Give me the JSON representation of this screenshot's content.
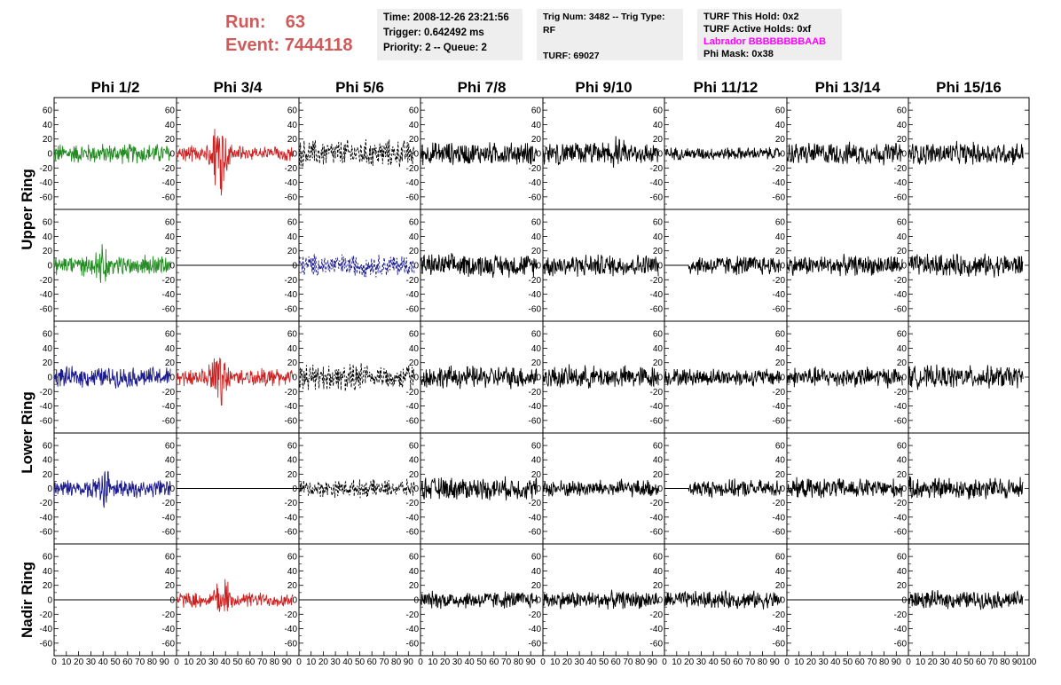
{
  "header": {
    "run_label": "Run:",
    "run_value": "63",
    "event_label": "Event:",
    "event_value": "7444118"
  },
  "info": {
    "time": "Time: 2008-12-26 23:21:56",
    "trigger": "Trigger: 0.642492 ms",
    "priority": "Priority: 2 -- Queue: 2",
    "trig_num": "Trig Num: 3482 -- Trig Type: RF",
    "turf": "TURF: 69027",
    "turf_this_hold": "TURF This Hold: 0x2",
    "turf_active_holds": "TURF Active Holds: 0xf",
    "labrador": "Labrador BBBBBBBBAAB",
    "phi_mask": "Phi Mask: 0x38"
  },
  "colors": {
    "header_red": "#d05a5a",
    "box_bg": "#eeeeee",
    "labrador": "#ff00ff",
    "green": "#228b22",
    "red": "#cc2222",
    "blue": "#1a1a8c",
    "black": "#000000"
  },
  "chart_data": {
    "type": "line",
    "columns": [
      "Phi 1/2",
      "Phi 3/4",
      "Phi 5/6",
      "Phi 7/8",
      "Phi 9/10",
      "Phi 11/12",
      "Phi 13/14",
      "Phi 15/16"
    ],
    "rings": [
      "Upper Ring",
      "Lower Ring",
      "Nadir Ring"
    ],
    "row_ring": [
      0,
      0,
      1,
      1,
      2
    ],
    "ylim": [
      -70,
      70
    ],
    "yticks": [
      -60,
      -40,
      -20,
      0,
      20,
      40,
      60
    ],
    "xlim": [
      0,
      100
    ],
    "xticks": [
      0,
      10,
      20,
      30,
      40,
      50,
      60,
      70,
      80,
      90,
      100
    ],
    "xtick_labels": [
      "0",
      "10",
      "20",
      "30",
      "40",
      "50",
      "60",
      "70",
      "80",
      "90",
      "100"
    ],
    "panels": [
      [
        {
          "style": "green",
          "amp": 16,
          "burst": 0
        },
        {
          "style": "red",
          "amp": 12,
          "burst": 55,
          "bc": 35
        },
        {
          "style": "black-dash",
          "amp": 22,
          "burst": 0
        },
        {
          "style": "black",
          "amp": 18,
          "burst": 0
        },
        {
          "style": "black",
          "amp": 18,
          "burst": 12,
          "bc": 60
        },
        {
          "style": "black",
          "amp": 10,
          "burst": 0
        },
        {
          "style": "black",
          "amp": 18,
          "burst": 0
        },
        {
          "style": "black",
          "amp": 18,
          "burst": 0
        }
      ],
      [
        {
          "style": "green",
          "amp": 16,
          "burst": 20,
          "bc": 40
        },
        {
          "style": "flat"
        },
        {
          "style": "blue-dash",
          "amp": 18,
          "burst": 0
        },
        {
          "style": "black",
          "amp": 18,
          "burst": 0
        },
        {
          "style": "black",
          "amp": 18,
          "burst": 0
        },
        {
          "style": "black",
          "amp": 0,
          "burst": 0,
          "seg": [
            20,
            100
          ],
          "amp2": 16
        },
        {
          "style": "black",
          "amp": 16,
          "burst": 0
        },
        {
          "style": "black",
          "amp": 18,
          "burst": 0
        }
      ],
      [
        {
          "style": "blue",
          "amp": 16,
          "burst": 0
        },
        {
          "style": "red",
          "amp": 14,
          "burst": 40,
          "bc": 35
        },
        {
          "style": "black-dash",
          "amp": 20,
          "burst": 18,
          "bc": 45
        },
        {
          "style": "black",
          "amp": 18,
          "burst": 0
        },
        {
          "style": "black",
          "amp": 18,
          "burst": 0
        },
        {
          "style": "black",
          "amp": 14,
          "burst": 0
        },
        {
          "style": "black",
          "amp": 16,
          "burst": 0
        },
        {
          "style": "black",
          "amp": 18,
          "burst": 0
        }
      ],
      [
        {
          "style": "blue",
          "amp": 14,
          "burst": 22,
          "bc": 40
        },
        {
          "style": "flat"
        },
        {
          "style": "black-dash",
          "amp": 14,
          "burst": 0
        },
        {
          "style": "black",
          "amp": 18,
          "burst": 0
        },
        {
          "style": "black",
          "amp": 14,
          "burst": 0
        },
        {
          "style": "black",
          "amp": 0,
          "burst": 0,
          "seg": [
            20,
            100
          ],
          "amp2": 14
        },
        {
          "style": "black",
          "amp": 16,
          "burst": 0
        },
        {
          "style": "black",
          "amp": 18,
          "burst": 0
        }
      ],
      [
        {
          "style": "flat"
        },
        {
          "style": "red",
          "amp": 12,
          "burst": 28,
          "bc": 38
        },
        {
          "style": "flat"
        },
        {
          "style": "black",
          "amp": 14,
          "burst": 0
        },
        {
          "style": "black",
          "amp": 14,
          "burst": 0
        },
        {
          "style": "black",
          "amp": 14,
          "burst": 0
        },
        {
          "style": "flat"
        },
        {
          "style": "black",
          "amp": 14,
          "burst": 0
        }
      ]
    ]
  }
}
